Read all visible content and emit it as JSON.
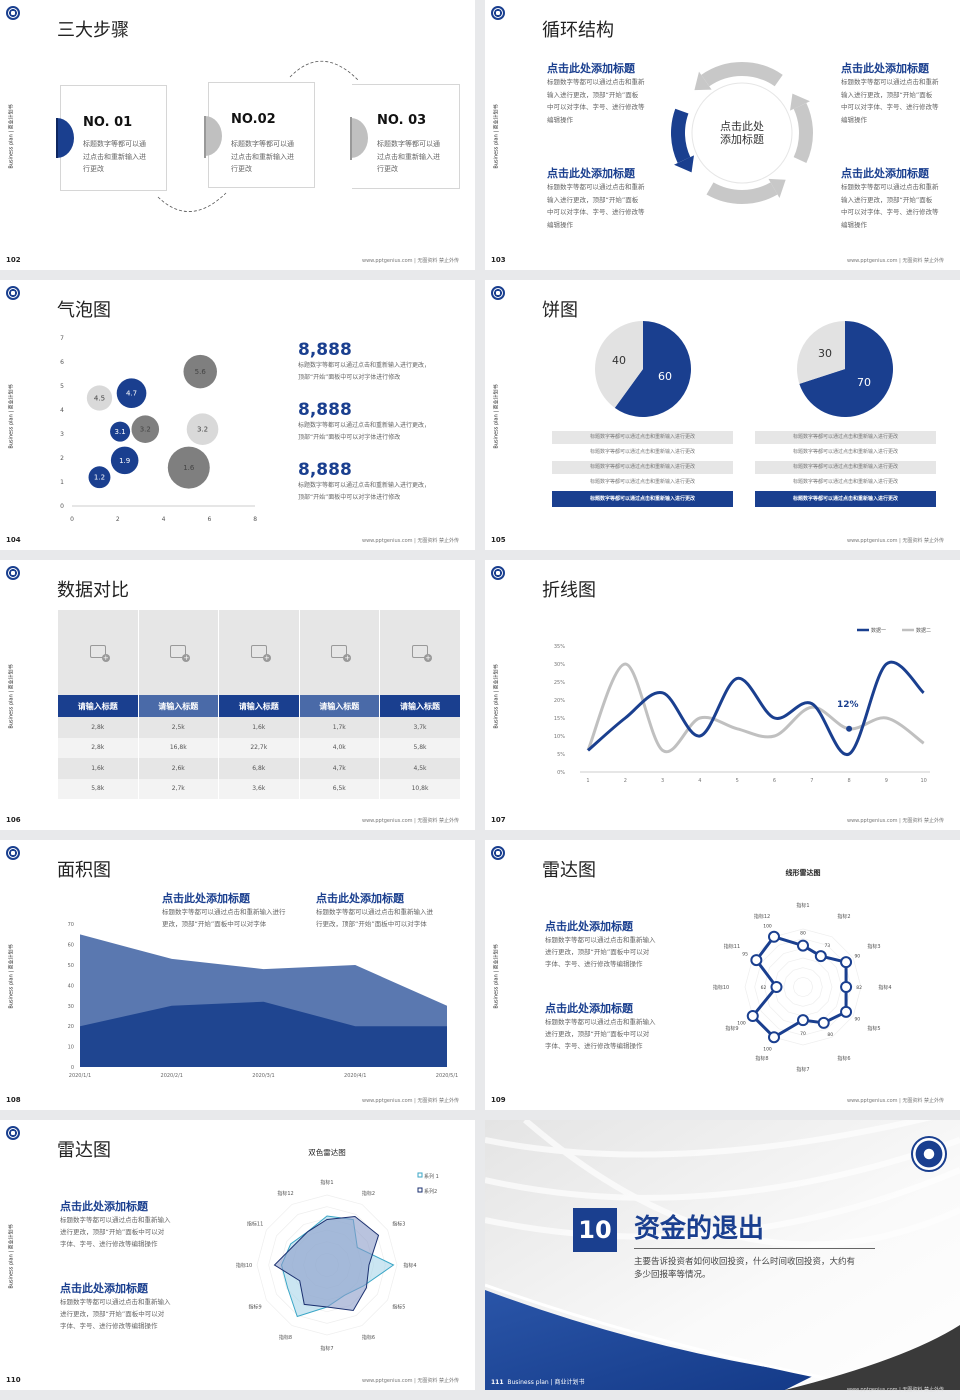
{
  "common": {
    "side_text": "Business plan | 商业计划书",
    "footer": "www.pptgenius.com | 无图资料 禁止外传",
    "colors": {
      "blue": "#1a3f8f",
      "gray": "#c8c8c8",
      "dark_gray": "#7f7f7f"
    }
  },
  "s102": {
    "page": "102",
    "title": "三大步骤",
    "steps": [
      {
        "no": "NO. 01",
        "l1": "标题数字等都可以通",
        "l2": "过点击和重新输入进",
        "l3": "行更改"
      },
      {
        "no": "NO.02",
        "l1": "标题数字等都可以通",
        "l2": "过点击和重新输入进",
        "l3": "行更改"
      },
      {
        "no": "NO. 03",
        "l1": "标题数字等都可以通",
        "l2": "过点击和重新输入进",
        "l3": "行更改"
      }
    ]
  },
  "s103": {
    "page": "103",
    "title": "循环结构",
    "center_l1": "点击此处",
    "center_l2": "添加标题",
    "blocks": [
      {
        "heading": "点击此处添加标题",
        "l1": "标题数字等都可以通过点击和重新",
        "l2": "输入进行更改，顶部“开始”面板",
        "l3": "中可以对字体、字号、进行修改等",
        "l4": "编辑操作"
      },
      {
        "heading": "点击此处添加标题",
        "l1": "标题数字等都可以通过点击和重新",
        "l2": "输入进行更改，顶部“开始”面板",
        "l3": "中可以对字体、字号、进行修改等",
        "l4": "编辑操作"
      },
      {
        "heading": "点击此处添加标题",
        "l1": "标题数字等都可以通过点击和重新",
        "l2": "输入进行更改，顶部“开始”面板",
        "l3": "中可以对字体、字号、进行修改等",
        "l4": "编辑操作"
      },
      {
        "heading": "点击此处添加标题",
        "l1": "标题数字等都可以通过点击和重新",
        "l2": "输入进行更改，顶部“开始”面板",
        "l3": "中可以对字体、字号、进行修改等",
        "l4": "编辑操作"
      }
    ]
  },
  "s104": {
    "page": "104",
    "title": "气泡图",
    "stats": [
      {
        "value": "8,888",
        "l1": "标题数字等都可以通过点击和重新输入进行更改，",
        "l2": "顶部“开始”面板中可以对字体进行修改"
      },
      {
        "value": "8,888",
        "l1": "标题数字等都可以通过点击和重新输入进行更改，",
        "l2": "顶部“开始”面板中可以对字体进行修改"
      },
      {
        "value": "8,888",
        "l1": "标题数字等都可以通过点击和重新输入进行更改，",
        "l2": "顶部“开始”面板中可以对字体进行修改"
      }
    ]
  },
  "s105": {
    "page": "105",
    "title": "饼图",
    "rows_left": [
      "标题数字等都可以通过点击和重新输入进行更改",
      "标题数字等都可以通过点击和重新输入进行更改",
      "标题数字等都可以通过点击和重新输入进行更改",
      "标题数字等都可以通过点击和重新输入进行更改",
      "标题数字等都可以通过点击和重新输入进行更改"
    ],
    "rows_right": [
      "标题数字等都可以通过点击和重新输入进行更改",
      "标题数字等都可以通过点击和重新输入进行更改",
      "标题数字等都可以通过点击和重新输入进行更改",
      "标题数字等都可以通过点击和重新输入进行更改",
      "标题数字等都可以通过点击和重新输入进行更改"
    ]
  },
  "s106": {
    "page": "106",
    "title": "数据对比",
    "headers": [
      "请输入标题",
      "请输入标题",
      "请输入标题",
      "请输入标题",
      "请输入标题"
    ],
    "rows": [
      [
        "2,8k",
        "2,5k",
        "1,6k",
        "1,7k",
        "3,7k"
      ],
      [
        "2,8k",
        "16,8k",
        "22,7k",
        "4,0k",
        "5,8k"
      ],
      [
        "1,6k",
        "2,6k",
        "6,8k",
        "4,7k",
        "4,5k"
      ],
      [
        "5,8k",
        "2,7k",
        "3,6k",
        "6,5k",
        "10,8k"
      ]
    ]
  },
  "s107": {
    "page": "107",
    "title": "折线图",
    "annotation": "12%"
  },
  "s108": {
    "page": "108",
    "title": "面积图",
    "blocks": [
      {
        "heading": "点击此处添加标题",
        "l1": "标题数字等都可以通过点击和重新输入进行",
        "l2": "更改，顶部“开始”面板中可以对字体"
      },
      {
        "heading": "点击此处添加标题",
        "l1": "标题数字等都可以通过点击和重新输入进",
        "l2": "行更改，顶部“开始”面板中可以对字体"
      }
    ]
  },
  "s109": {
    "page": "109",
    "title": "雷达图",
    "blocks": [
      {
        "heading": "点击此处添加标题",
        "l1": "标题数字等都可以通过点击和重新输入",
        "l2": "进行更改，顶部“开始”面板中可以对",
        "l3": "字体、字号、进行修改等编辑操作"
      },
      {
        "heading": "点击此处添加标题",
        "l1": "标题数字等都可以通过点击和重新输入",
        "l2": "进行更改，顶部“开始”面板中可以对",
        "l3": "字体、字号、进行修改等编辑操作"
      }
    ]
  },
  "s110": {
    "page": "110",
    "title": "雷达图",
    "blocks": [
      {
        "heading": "点击此处添加标题",
        "l1": "标题数字等都可以通过点击和重新输入",
        "l2": "进行更改，顶部“开始”面板中可以对",
        "l3": "字体、字号、进行修改等编辑操作"
      },
      {
        "heading": "点击此处添加标题",
        "l1": "标题数字等都可以通过点击和重新输入",
        "l2": "进行更改，顶部“开始”面板中可以对",
        "l3": "字体、字号、进行修改等编辑操作"
      }
    ]
  },
  "s111": {
    "page": "111",
    "number": "10",
    "title": "资金的退出",
    "l1": "主要告诉投资者如何收回投资，什么时间收回投资，大约有",
    "l2": "多少回报率等情况。",
    "footer_left": "Business plan | 商业计划书"
  },
  "chart_data": [
    {
      "type": "scatter",
      "subtype": "bubble",
      "xlim": [
        0,
        8
      ],
      "ylim": [
        0,
        7
      ],
      "xticks": [
        0,
        2,
        4,
        6,
        8
      ],
      "yticks": [
        0,
        1,
        2,
        3,
        4,
        5,
        6,
        7
      ],
      "points": [
        {
          "x": 1.2,
          "y": 1.2,
          "label": "1.2",
          "size": 1.2,
          "color": "#1a3f8f"
        },
        {
          "x": 2.3,
          "y": 1.9,
          "label": "1.9",
          "size": 1.9,
          "color": "#1a3f8f"
        },
        {
          "x": 5.1,
          "y": 1.6,
          "label": "1.6",
          "size": 4.4,
          "color": "#7f7f7f"
        },
        {
          "x": 2.1,
          "y": 3.1,
          "label": "3.1",
          "size": 1.0,
          "color": "#1a3f8f"
        },
        {
          "x": 3.2,
          "y": 3.2,
          "label": "3.2",
          "size": 1.9,
          "color": "#7f7f7f"
        },
        {
          "x": 5.7,
          "y": 3.2,
          "label": "3.2",
          "size": 2.5,
          "color": "#d9d9d9"
        },
        {
          "x": 1.2,
          "y": 4.5,
          "label": "4.5",
          "size": 1.6,
          "color": "#d9d9d9"
        },
        {
          "x": 2.6,
          "y": 4.7,
          "label": "4.7",
          "size": 2.2,
          "color": "#1a3f8f"
        },
        {
          "x": 5.6,
          "y": 5.6,
          "label": "5.6",
          "size": 2.8,
          "color": "#7f7f7f"
        }
      ]
    },
    {
      "type": "pie",
      "values": [
        60,
        40
      ],
      "labels": [
        "60",
        "40"
      ],
      "colors": [
        "#1a3f8f",
        "#e2e2e2"
      ]
    },
    {
      "type": "pie",
      "values": [
        70,
        30
      ],
      "labels": [
        "70",
        "30"
      ],
      "colors": [
        "#1a3f8f",
        "#e2e2e2"
      ]
    },
    {
      "type": "line",
      "x": [
        1,
        2,
        3,
        4,
        5,
        6,
        7,
        8,
        9,
        10
      ],
      "ylim": [
        0,
        35
      ],
      "yticks": [
        "0%",
        "5%",
        "10%",
        "15%",
        "20%",
        "25%",
        "30%",
        "35%"
      ],
      "legend": "top-right",
      "series": [
        {
          "name": "数据一",
          "color": "#1a3f8f",
          "values": [
            6,
            15,
            22,
            10,
            26,
            15,
            19,
            5,
            30,
            22
          ]
        },
        {
          "name": "数据二",
          "color": "#c0c0c0",
          "values": [
            6,
            30,
            6,
            15,
            12,
            10,
            18,
            12,
            15,
            8
          ]
        }
      ],
      "annotation": {
        "x": 8,
        "y": 12
      }
    },
    {
      "type": "area",
      "categories": [
        "2020/1/1",
        "2020/2/1",
        "2020/3/1",
        "2020/4/1",
        "2020/5/1"
      ],
      "ylim": [
        0,
        70
      ],
      "yticks": [
        0,
        10,
        20,
        30,
        40,
        50,
        60,
        70
      ],
      "series": [
        {
          "color": "#5a78b0",
          "values": [
            65,
            53,
            48,
            50,
            30
          ]
        },
        {
          "color": "#1f4590",
          "values": [
            20,
            30,
            32,
            20,
            20
          ]
        }
      ]
    },
    {
      "type": "radar",
      "title": "线形雷达图",
      "axes": [
        "指标1",
        "指标2",
        "指标3",
        "指标4",
        "指标5",
        "指标6",
        "指标7",
        "指标8",
        "指标9",
        "指标10",
        "指标11",
        "指标12"
      ],
      "series": [
        {
          "color": "#1a3f8f",
          "values": [
            80,
            73,
            90,
            82,
            90,
            80,
            70,
            100,
            100,
            62,
            95,
            100
          ]
        }
      ]
    },
    {
      "type": "radar",
      "title": "双色雷达图",
      "axes": [
        "指标1",
        "指标2",
        "指标3",
        "指标4",
        "指标5",
        "指标6",
        "指标7",
        "指标8",
        "指标9",
        "指标10",
        "指标11",
        "指标12"
      ],
      "legend": "top-right",
      "series": [
        {
          "name": "系列 1",
          "color": "#3aa6c6",
          "fill": "#a9d6ea",
          "values": [
            70,
            75,
            50,
            95,
            60,
            50,
            60,
            85,
            65,
            65,
            60,
            55
          ]
        },
        {
          "name": "系列2",
          "color": "#1a2f6f",
          "fill": "#8b9bc8",
          "values": [
            65,
            80,
            85,
            60,
            65,
            75,
            60,
            65,
            45,
            75,
            55,
            55
          ]
        }
      ]
    }
  ]
}
